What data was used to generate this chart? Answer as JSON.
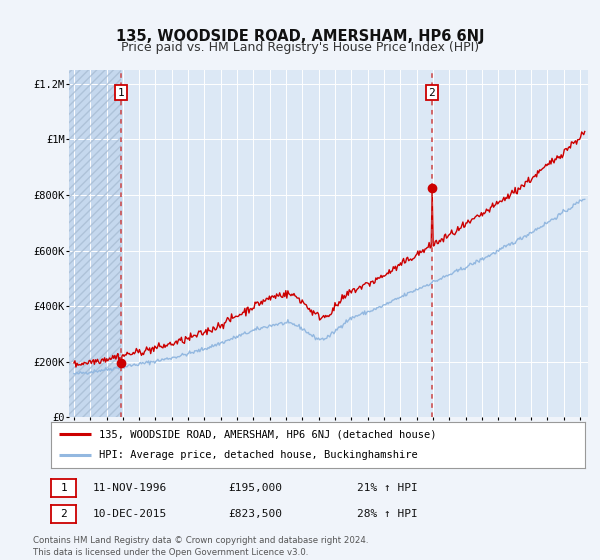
{
  "title": "135, WOODSIDE ROAD, AMERSHAM, HP6 6NJ",
  "subtitle": "Price paid vs. HM Land Registry's House Price Index (HPI)",
  "ylim": [
    0,
    1250000
  ],
  "xlim": [
    1993.7,
    2025.5
  ],
  "yticks": [
    0,
    200000,
    400000,
    600000,
    800000,
    1000000,
    1200000
  ],
  "ytick_labels": [
    "£0",
    "£200K",
    "£400K",
    "£600K",
    "£800K",
    "£1M",
    "£1.2M"
  ],
  "background_color": "#f0f4fa",
  "plot_bg_color": "#dce8f5",
  "grid_color": "#ffffff",
  "hpi_line_color": "#93b8e0",
  "price_line_color": "#cc0000",
  "vline_color": "#cc4444",
  "transaction1": {
    "year": 1996.87,
    "price": 195000
  },
  "transaction2": {
    "year": 2015.94,
    "price": 823500
  },
  "legend_line1": "135, WOODSIDE ROAD, AMERSHAM, HP6 6NJ (detached house)",
  "legend_line2": "HPI: Average price, detached house, Buckinghamshire",
  "footer": "Contains HM Land Registry data © Crown copyright and database right 2024.\nThis data is licensed under the Open Government Licence v3.0.",
  "title_fontsize": 10.5,
  "subtitle_fontsize": 9,
  "tick_fontsize": 7.5
}
